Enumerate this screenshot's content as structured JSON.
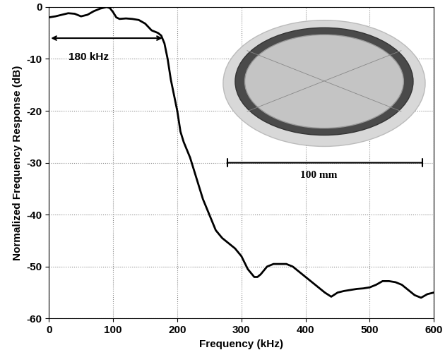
{
  "chart_data": {
    "type": "line",
    "x_label": "Frequency (kHz)",
    "y_label": "Normalized Frequency Response (dB)",
    "x": [
      0,
      10,
      20,
      30,
      40,
      50,
      60,
      70,
      80,
      90,
      95,
      100,
      105,
      110,
      120,
      130,
      140,
      150,
      160,
      170,
      175,
      180,
      185,
      190,
      195,
      200,
      205,
      210,
      220,
      230,
      240,
      250,
      260,
      270,
      280,
      290,
      300,
      310,
      320,
      325,
      330,
      340,
      350,
      360,
      370,
      380,
      390,
      400,
      410,
      420,
      430,
      440,
      450,
      460,
      470,
      480,
      490,
      500,
      510,
      520,
      530,
      540,
      550,
      560,
      570,
      580,
      590,
      600
    ],
    "values": [
      -2,
      -1.8,
      -1.5,
      -1.2,
      -1.3,
      -1.8,
      -1.5,
      -0.8,
      -0.3,
      0,
      -0.2,
      -1,
      -2,
      -2.3,
      -2.2,
      -2.3,
      -2.5,
      -3.2,
      -4.5,
      -5,
      -5.5,
      -7,
      -10,
      -14,
      -17,
      -20,
      -24,
      -26,
      -29,
      -33,
      -37,
      -40,
      -43,
      -44.5,
      -45.5,
      -46.5,
      -48,
      -50.5,
      -52,
      -52,
      -51.5,
      -50,
      -49.5,
      -49.5,
      -49.5,
      -50,
      -51,
      -52,
      -53,
      -54,
      -55,
      -55.8,
      -55,
      -54.7,
      -54.5,
      -54.3,
      -54.2,
      -54,
      -53.5,
      -52.8,
      -52.8,
      -53,
      -53.5,
      -54.5,
      -55.5,
      -56,
      -55.3,
      -55
    ],
    "color": "#000000",
    "xlim": [
      0,
      600
    ],
    "xticks": [
      0,
      100,
      200,
      300,
      400,
      500,
      600
    ],
    "ylim": [
      -60,
      0
    ],
    "yticks": [
      -60,
      -50,
      -40,
      -30,
      -20,
      -10,
      0
    ],
    "grid": true,
    "annotations": [
      "180 kHz",
      "100 mm"
    ]
  }
}
